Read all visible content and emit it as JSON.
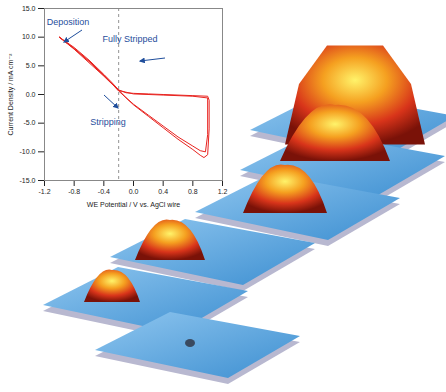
{
  "chart_data": {
    "type": "line",
    "x_label": "WE Potential / V vs. AgCl wire",
    "y_label": "Current Density / mA cm⁻²",
    "x": [
      -1.0,
      -0.8,
      -0.6,
      -0.4,
      -0.3,
      -0.2,
      -0.1,
      0.0,
      0.2,
      0.4,
      0.6,
      0.8,
      0.9,
      0.95,
      1.0,
      1.02,
      1.02,
      1.0,
      0.8,
      0.6,
      0.4,
      0.2,
      0.0,
      -0.1,
      -0.2,
      -0.3,
      -0.4,
      -0.6,
      -0.8,
      -1.0,
      -0.8,
      -0.6,
      -0.4,
      -0.2,
      0.0,
      0.2,
      0.4,
      0.6,
      0.8,
      0.9,
      0.97,
      1.0,
      1.0,
      0.8,
      0.4,
      0.0,
      -0.2,
      -0.4,
      -0.8,
      -1.0
    ],
    "values": [
      10.0,
      8.2,
      6.0,
      3.5,
      2.2,
      0.8,
      -0.6,
      -1.8,
      -3.8,
      -5.8,
      -7.8,
      -9.6,
      -10.6,
      -11.0,
      -10.5,
      -6.0,
      -1.0,
      -0.3,
      -0.2,
      -0.1,
      0.0,
      0.1,
      0.2,
      0.3,
      0.8,
      2.0,
      3.3,
      5.8,
      8.0,
      10.0,
      8.0,
      5.8,
      3.4,
      0.6,
      -1.7,
      -3.6,
      -5.5,
      -7.4,
      -9.0,
      -9.8,
      -10.0,
      -7.0,
      -0.6,
      -0.3,
      -0.1,
      0.1,
      0.7,
      3.2,
      7.9,
      10.0
    ],
    "color": "#e8231f",
    "xlim": [
      -1.2,
      1.2
    ],
    "xticks": [
      -1.2,
      -0.8,
      -0.4,
      {
        "value": 0,
        "label": "0.0"
      },
      0.4,
      0.8,
      1.2
    ],
    "ylim": [
      -15,
      15
    ],
    "yticks": [
      {
        "value": -15,
        "label": "-15.0"
      },
      {
        "value": -10,
        "label": "-10.0"
      },
      {
        "value": -5,
        "label": "-5.0"
      },
      {
        "value": 0,
        "label": "0.0"
      },
      {
        "value": 5,
        "label": "5.0"
      },
      {
        "value": 10,
        "label": "10.0"
      },
      {
        "value": 15,
        "label": "15.0"
      }
    ],
    "divider_x": -0.2,
    "annotations": [
      "Deposition",
      "Fully Stripped",
      "Stripping"
    ],
    "grid": false
  }
}
